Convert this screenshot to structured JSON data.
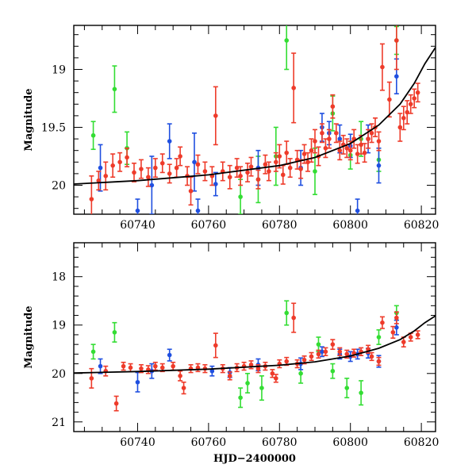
{
  "chart_data": [
    {
      "type": "scatter",
      "title": "",
      "xlabel": "",
      "ylabel": "Magnitude",
      "xlim": [
        60722,
        60824
      ],
      "ylim": [
        20.25,
        18.62
      ],
      "y_inverted": true,
      "xticks": [
        60740,
        60760,
        60780,
        60800,
        60820
      ],
      "yticks": [
        19,
        19.5,
        20
      ],
      "yticklabels": [
        "19",
        "19.5",
        "20"
      ],
      "grid": false,
      "series_colors": {
        "green": "#33dd33",
        "blue": "#1f4fe0",
        "red": "#ee3b2a"
      },
      "model_curve": [
        [
          60722,
          19.99
        ],
        [
          60740,
          19.96
        ],
        [
          60760,
          19.91
        ],
        [
          60780,
          19.83
        ],
        [
          60790,
          19.76
        ],
        [
          60800,
          19.64
        ],
        [
          60808,
          19.48
        ],
        [
          60814,
          19.3
        ],
        [
          60818,
          19.12
        ],
        [
          60821,
          18.95
        ],
        [
          60824,
          18.81
        ]
      ],
      "series": [
        {
          "color": "green",
          "points": [
            [
              60727.5,
              19.57,
              0.12
            ],
            [
              60733.5,
              19.17,
              0.2
            ],
            [
              60737,
              19.68,
              0.14
            ],
            [
              60769,
              20.1,
              0.15
            ],
            [
              60774,
              19.95,
              0.2
            ],
            [
              60779,
              19.75,
              0.25
            ],
            [
              60782,
              18.75,
              0.25
            ],
            [
              60790,
              19.88,
              0.2
            ],
            [
              60795,
              19.38,
              0.15
            ],
            [
              60800,
              19.74,
              0.12
            ],
            [
              60803,
              19.6,
              0.15
            ],
            [
              60808,
              19.78,
              0.1
            ],
            [
              60813,
              18.75,
              0.12
            ]
          ]
        },
        {
          "color": "blue",
          "points": [
            [
              60729.5,
              19.85,
              0.2
            ],
            [
              60740,
              20.22,
              0.1
            ],
            [
              60744,
              20.0,
              0.25
            ],
            [
              60749,
              19.62,
              0.15
            ],
            [
              60756,
              19.8,
              0.25
            ],
            [
              60757,
              20.22,
              0.1
            ],
            [
              60762,
              19.99,
              0.1
            ],
            [
              60774,
              19.85,
              0.15
            ],
            [
              60786,
              19.85,
              0.15
            ],
            [
              60792,
              19.5,
              0.12
            ],
            [
              60794,
              19.55,
              0.1
            ],
            [
              60797,
              19.6,
              0.12
            ],
            [
              60800,
              19.66,
              0.1
            ],
            [
              60802,
              20.22,
              0.1
            ],
            [
              60805,
              19.6,
              0.12
            ],
            [
              60808,
              19.83,
              0.15
            ],
            [
              60813,
              19.06,
              0.15
            ]
          ]
        },
        {
          "color": "red",
          "points": [
            [
              60727,
              20.12,
              0.2
            ],
            [
              60729,
              19.96,
              0.08
            ],
            [
              60731,
              19.92,
              0.12
            ],
            [
              60733,
              19.83,
              0.1
            ],
            [
              60735,
              19.8,
              0.08
            ],
            [
              60737,
              19.76,
              0.08
            ],
            [
              60739,
              19.89,
              0.08
            ],
            [
              60741,
              19.86,
              0.08
            ],
            [
              60743,
              19.93,
              0.08
            ],
            [
              60745,
              19.85,
              0.08
            ],
            [
              60747,
              19.81,
              0.08
            ],
            [
              60749,
              19.9,
              0.08
            ],
            [
              60751,
              19.85,
              0.08
            ],
            [
              60752,
              19.75,
              0.08
            ],
            [
              60754,
              19.92,
              0.08
            ],
            [
              60755,
              20.05,
              0.12
            ],
            [
              60757,
              19.82,
              0.08
            ],
            [
              60759,
              19.88,
              0.08
            ],
            [
              60761,
              19.92,
              0.08
            ],
            [
              60762,
              19.4,
              0.25
            ],
            [
              60764,
              19.88,
              0.08
            ],
            [
              60766,
              19.93,
              0.1
            ],
            [
              60768,
              19.85,
              0.08
            ],
            [
              60769,
              19.92,
              0.08
            ],
            [
              60771,
              19.89,
              0.08
            ],
            [
              60772,
              19.84,
              0.08
            ],
            [
              60774,
              19.95,
              0.08
            ],
            [
              60776,
              19.82,
              0.08
            ],
            [
              60777,
              19.88,
              0.08
            ],
            [
              60779,
              19.8,
              0.08
            ],
            [
              60780,
              19.75,
              0.1
            ],
            [
              60781,
              19.91,
              0.08
            ],
            [
              60782,
              19.72,
              0.1
            ],
            [
              60783,
              19.85,
              0.08
            ],
            [
              60784,
              19.16,
              0.3
            ],
            [
              60785,
              19.78,
              0.08
            ],
            [
              60786,
              19.86,
              0.08
            ],
            [
              60787,
              19.73,
              0.08
            ],
            [
              60788,
              19.8,
              0.08
            ],
            [
              60789,
              19.7,
              0.1
            ],
            [
              60790,
              19.62,
              0.1
            ],
            [
              60791,
              19.75,
              0.08
            ],
            [
              60792,
              19.55,
              0.08
            ],
            [
              60793,
              19.68,
              0.08
            ],
            [
              60794,
              19.6,
              0.08
            ],
            [
              60795,
              19.32,
              0.1
            ],
            [
              60796,
              19.55,
              0.08
            ],
            [
              60797,
              19.7,
              0.08
            ],
            [
              60798,
              19.65,
              0.08
            ],
            [
              60799,
              19.68,
              0.08
            ],
            [
              60800,
              19.7,
              0.08
            ],
            [
              60801,
              19.6,
              0.08
            ],
            [
              60802,
              19.73,
              0.08
            ],
            [
              60803,
              19.65,
              0.08
            ],
            [
              60804,
              19.72,
              0.08
            ],
            [
              60805,
              19.6,
              0.08
            ],
            [
              60806,
              19.55,
              0.08
            ],
            [
              60807,
              19.5,
              0.08
            ],
            [
              60808,
              19.62,
              0.08
            ],
            [
              60809,
              18.98,
              0.2
            ],
            [
              60811,
              19.26,
              0.15
            ],
            [
              60813,
              18.75,
              0.25
            ],
            [
              60814,
              19.5,
              0.12
            ],
            [
              60815,
              19.42,
              0.1
            ],
            [
              60816,
              19.37,
              0.1
            ],
            [
              60817,
              19.3,
              0.08
            ],
            [
              60818,
              19.25,
              0.08
            ],
            [
              60819,
              19.2,
              0.08
            ]
          ]
        }
      ]
    },
    {
      "type": "scatter",
      "title": "",
      "xlabel": "HJD−2400000",
      "ylabel": "Magnitude",
      "xlim": [
        60722,
        60824
      ],
      "ylim": [
        21.2,
        17.3
      ],
      "y_inverted": true,
      "xticks": [
        60740,
        60760,
        60780,
        60800,
        60820
      ],
      "yticks": [
        18,
        19,
        20,
        21
      ],
      "yticklabels": [
        "18",
        "19",
        "20",
        "21"
      ],
      "grid": false,
      "series_colors": {
        "green": "#33dd33",
        "blue": "#1f4fe0",
        "red": "#ee3b2a"
      },
      "model_curve": [
        [
          60722,
          19.99
        ],
        [
          60740,
          19.96
        ],
        [
          60760,
          19.91
        ],
        [
          60780,
          19.83
        ],
        [
          60790,
          19.76
        ],
        [
          60800,
          19.64
        ],
        [
          60808,
          19.48
        ],
        [
          60814,
          19.3
        ],
        [
          60818,
          19.12
        ],
        [
          60821,
          18.95
        ],
        [
          60824,
          18.81
        ]
      ],
      "series": [
        {
          "color": "green",
          "points": [
            [
              60727.5,
              19.55,
              0.15
            ],
            [
              60733.5,
              19.15,
              0.2
            ],
            [
              60769,
              20.5,
              0.2
            ],
            [
              60771,
              20.2,
              0.2
            ],
            [
              60775,
              20.3,
              0.25
            ],
            [
              60782,
              18.75,
              0.25
            ],
            [
              60786,
              20.0,
              0.2
            ],
            [
              60791,
              19.4,
              0.15
            ],
            [
              60795,
              19.95,
              0.15
            ],
            [
              60799,
              20.3,
              0.2
            ],
            [
              60803,
              20.4,
              0.25
            ],
            [
              60808,
              19.25,
              0.15
            ],
            [
              60813,
              18.75,
              0.15
            ]
          ]
        },
        {
          "color": "blue",
          "points": [
            [
              60729.5,
              19.85,
              0.15
            ],
            [
              60740,
              20.18,
              0.2
            ],
            [
              60744,
              19.95,
              0.15
            ],
            [
              60749,
              19.62,
              0.12
            ],
            [
              60761,
              19.95,
              0.1
            ],
            [
              60766,
              19.98,
              0.1
            ],
            [
              60774,
              19.82,
              0.12
            ],
            [
              60786,
              19.8,
              0.12
            ],
            [
              60792,
              19.55,
              0.1
            ],
            [
              60797,
              19.6,
              0.1
            ],
            [
              60800,
              19.65,
              0.1
            ],
            [
              60802,
              19.6,
              0.1
            ],
            [
              60805,
              19.58,
              0.1
            ],
            [
              60808,
              19.75,
              0.12
            ],
            [
              60813,
              19.05,
              0.15
            ]
          ]
        },
        {
          "color": "red",
          "points": [
            [
              60727,
              20.1,
              0.2
            ],
            [
              60731,
              19.95,
              0.1
            ],
            [
              60734,
              20.62,
              0.15
            ],
            [
              60736,
              19.85,
              0.08
            ],
            [
              60738,
              19.88,
              0.08
            ],
            [
              60741,
              19.9,
              0.08
            ],
            [
              60743,
              19.92,
              0.08
            ],
            [
              60745,
              19.85,
              0.08
            ],
            [
              60747,
              19.88,
              0.08
            ],
            [
              60750,
              19.85,
              0.08
            ],
            [
              60752,
              20.05,
              0.1
            ],
            [
              60753,
              20.3,
              0.12
            ],
            [
              60755,
              19.9,
              0.08
            ],
            [
              60757,
              19.88,
              0.08
            ],
            [
              60759,
              19.9,
              0.08
            ],
            [
              60762,
              19.42,
              0.25
            ],
            [
              60764,
              19.9,
              0.08
            ],
            [
              60766,
              20.05,
              0.08
            ],
            [
              60768,
              19.88,
              0.08
            ],
            [
              60770,
              19.85,
              0.08
            ],
            [
              60772,
              19.82,
              0.08
            ],
            [
              60774,
              19.9,
              0.08
            ],
            [
              60776,
              19.85,
              0.08
            ],
            [
              60778,
              20.0,
              0.08
            ],
            [
              60779,
              20.1,
              0.08
            ],
            [
              60780,
              19.8,
              0.08
            ],
            [
              60782,
              19.75,
              0.08
            ],
            [
              60784,
              18.85,
              0.3
            ],
            [
              60785,
              19.8,
              0.08
            ],
            [
              60787,
              19.72,
              0.08
            ],
            [
              60789,
              19.65,
              0.08
            ],
            [
              60791,
              19.6,
              0.08
            ],
            [
              60793,
              19.55,
              0.08
            ],
            [
              60795,
              19.4,
              0.1
            ],
            [
              60797,
              19.55,
              0.08
            ],
            [
              60799,
              19.6,
              0.08
            ],
            [
              60801,
              19.58,
              0.08
            ],
            [
              60803,
              19.55,
              0.08
            ],
            [
              60805,
              19.5,
              0.08
            ],
            [
              60806,
              19.65,
              0.08
            ],
            [
              60808,
              19.75,
              0.08
            ],
            [
              60809,
              18.95,
              0.12
            ],
            [
              60812,
              19.15,
              0.12
            ],
            [
              60813,
              18.85,
              0.12
            ],
            [
              60815,
              19.35,
              0.1
            ],
            [
              60817,
              19.25,
              0.08
            ],
            [
              60819,
              19.2,
              0.08
            ]
          ]
        }
      ]
    }
  ]
}
